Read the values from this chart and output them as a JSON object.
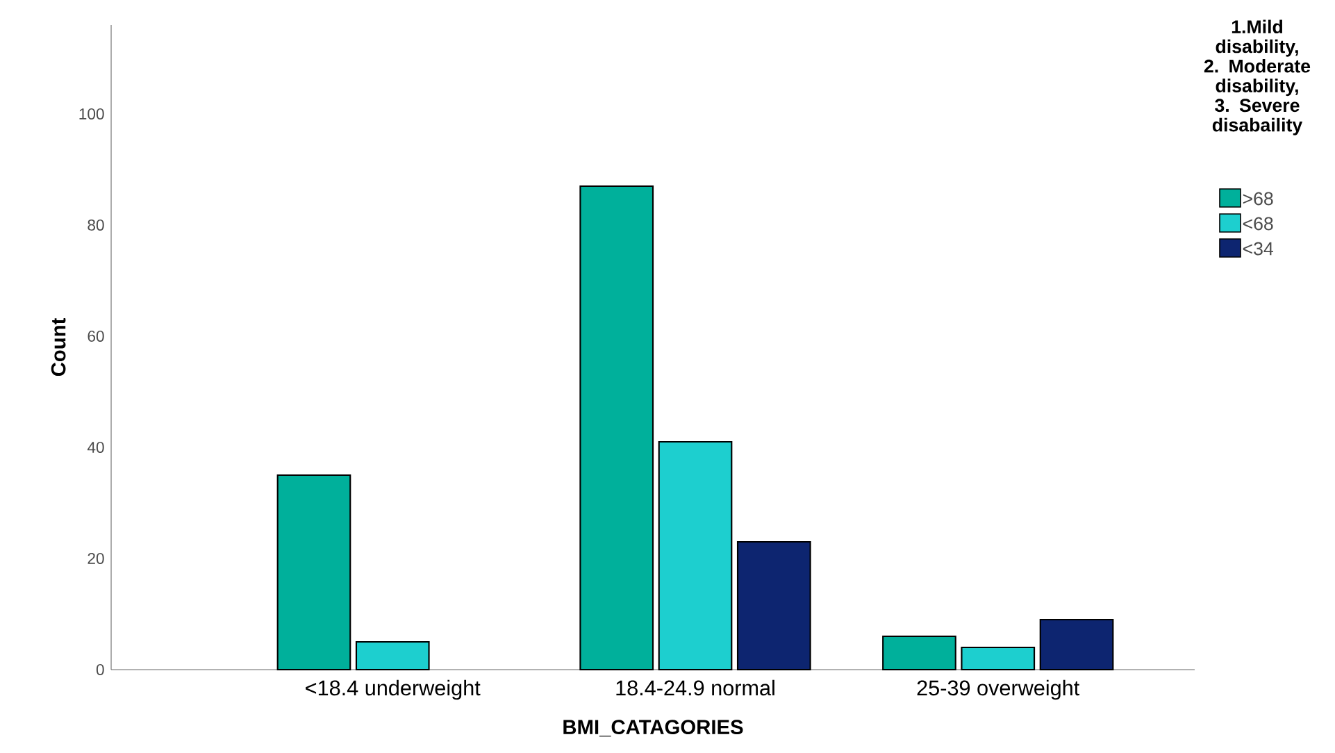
{
  "chart_data": {
    "type": "bar",
    "xlabel": "BMI_CATAGORIES",
    "ylabel": "Count",
    "legend_title": "1.Mild disability, 2. Moderate disability, 3. Severe disabaility",
    "categories": [
      "<18.4 underweight",
      "18.4-24.9 normal",
      "25-39 overweight"
    ],
    "series": [
      {
        "name": ">68",
        "color": "#00b09b",
        "values": [
          35,
          87,
          6
        ]
      },
      {
        "name": "<68",
        "color": "#1dcfcf",
        "values": [
          5,
          41,
          4
        ]
      },
      {
        "name": "<34",
        "color": "#0d2570",
        "values": [
          null,
          23,
          9
        ]
      }
    ],
    "ylim": [
      0,
      116
    ],
    "yticks": [
      0,
      20,
      40,
      60,
      80,
      100
    ],
    "grid": false,
    "legend": "top right"
  }
}
